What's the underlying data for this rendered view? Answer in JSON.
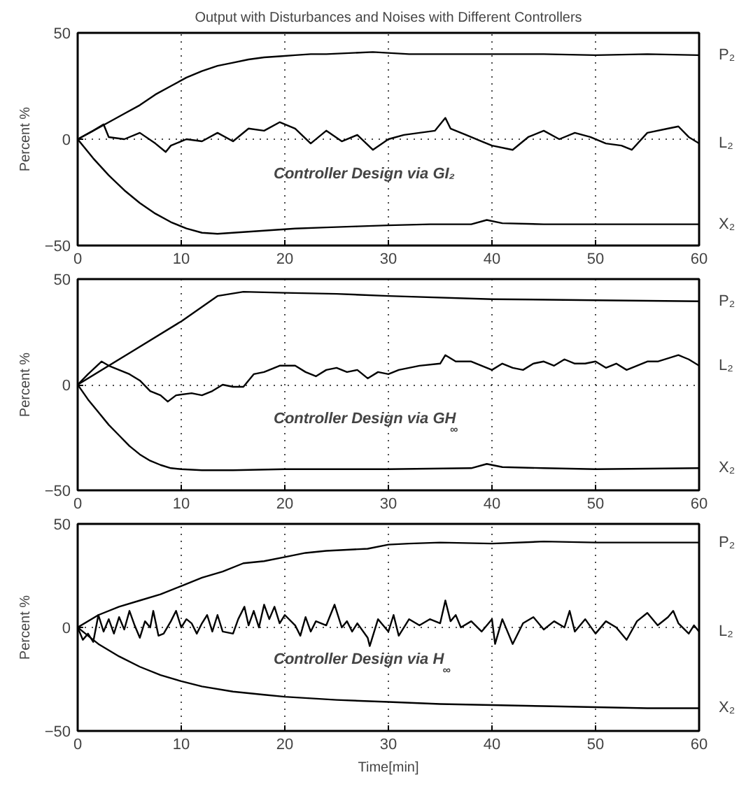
{
  "chart_data": [
    {
      "type": "line",
      "title": "Output with Disturbances and Noises with Different Controllers",
      "ylabel": "Percent %",
      "annotations": [
        "Controller Design via GI₂"
      ],
      "xlim": [
        0,
        60
      ],
      "ylim": [
        -50,
        50
      ],
      "xticks": [
        0,
        10,
        20,
        30,
        40,
        50,
        60
      ],
      "yticks": [
        -50,
        0,
        50
      ],
      "grid": true,
      "line_style": "solid",
      "series": [
        {
          "name": "P₂",
          "color": "#000000",
          "x": [
            0,
            1.5,
            3,
            4.5,
            6,
            7.5,
            9,
            10.5,
            12,
            13.5,
            15,
            16.5,
            18,
            19.5,
            21,
            22.5,
            24,
            28.5,
            32,
            36,
            40,
            45,
            50,
            55,
            60
          ],
          "values": [
            0,
            4,
            8,
            12,
            16,
            21,
            25,
            29,
            32,
            34.5,
            36,
            37.5,
            38.5,
            39,
            39.5,
            40,
            40,
            41,
            40,
            40,
            40,
            40,
            39.5,
            40,
            39.5
          ]
        },
        {
          "name": "L₂",
          "color": "#000000",
          "x": [
            0,
            1.5,
            2.5,
            3,
            4.5,
            6,
            7.5,
            8.5,
            9,
            10.5,
            12,
            13.5,
            15,
            16.5,
            18,
            19.5,
            21,
            22.5,
            24,
            25.5,
            27,
            28.5,
            30,
            31.5,
            33,
            34.5,
            35.5,
            36,
            37.5,
            39,
            40,
            42,
            43.5,
            45,
            46.5,
            48,
            49.5,
            51,
            52.5,
            53.5,
            55,
            57,
            58,
            59,
            60
          ],
          "values": [
            0,
            4,
            7,
            1,
            0,
            3,
            -2,
            -6,
            -3,
            0,
            -1,
            3,
            -1,
            5,
            4,
            8,
            5,
            -2,
            4,
            -1,
            2,
            -5,
            0,
            2,
            3,
            4,
            10,
            5,
            2,
            -1,
            -3,
            -5,
            1,
            4,
            0,
            3,
            1,
            -2,
            -3,
            -5,
            3,
            5,
            6,
            1,
            -2
          ]
        },
        {
          "name": "X₂",
          "color": "#000000",
          "x": [
            0,
            1.5,
            3,
            4.5,
            6,
            7.5,
            9,
            10.5,
            12,
            13.5,
            15,
            18,
            21,
            24,
            27,
            30,
            34,
            38,
            39.5,
            41,
            45,
            50,
            55,
            60
          ],
          "values": [
            0,
            -9,
            -17,
            -24,
            -30,
            -35,
            -39,
            -42,
            -44,
            -44.5,
            -44,
            -43,
            -42,
            -41.5,
            -41,
            -40.5,
            -40,
            -40,
            -38,
            -39.5,
            -40,
            -40,
            -40,
            -40
          ]
        }
      ]
    },
    {
      "type": "line",
      "ylabel": "Percent %",
      "annotations": [
        "Controller Design via GH$_{∞}$"
      ],
      "xlim": [
        0,
        60
      ],
      "ylim": [
        -50,
        50
      ],
      "xticks": [
        0,
        10,
        20,
        30,
        40,
        50,
        60
      ],
      "yticks": [
        -50,
        0,
        50
      ],
      "grid": true,
      "line_style": "solid",
      "series": [
        {
          "name": "P₂",
          "color": "#000000",
          "x": [
            0,
            5,
            10,
            13.5,
            16,
            20,
            25,
            30,
            40,
            50,
            60
          ],
          "values": [
            0,
            15,
            30,
            42,
            44,
            43.5,
            43,
            42,
            40.5,
            40,
            39.5
          ]
        },
        {
          "name": "L₂",
          "color": "#000000",
          "x": [
            0,
            1,
            2.3,
            3,
            4,
            5,
            6,
            7,
            8,
            8.7,
            9.5,
            11,
            12,
            13,
            14,
            15,
            16,
            17,
            18,
            19.5,
            21,
            22,
            23,
            24,
            25,
            26,
            27,
            28,
            29,
            30,
            31,
            33,
            35,
            35.5,
            36.5,
            38,
            39,
            40,
            41,
            42,
            43,
            44,
            45,
            46,
            47,
            48,
            49,
            50,
            51,
            52,
            53,
            55,
            56,
            58,
            59,
            60
          ],
          "values": [
            0,
            5,
            11,
            9,
            7,
            5,
            2,
            -3,
            -5,
            -8,
            -5,
            -4,
            -5,
            -3,
            0,
            -1,
            -1,
            5,
            6,
            9,
            9,
            6,
            4,
            7,
            8,
            6,
            7,
            3,
            6,
            5,
            7,
            9,
            10,
            14,
            11,
            11,
            9,
            7,
            10,
            8,
            7,
            10,
            11,
            9,
            12,
            10,
            10,
            11,
            8,
            10,
            7,
            11,
            11,
            14,
            12,
            9
          ]
        },
        {
          "name": "X₂",
          "color": "#000000",
          "x": [
            0,
            1,
            2,
            3,
            4,
            5,
            6,
            7,
            8,
            9,
            10,
            12,
            15,
            20,
            30,
            38,
            39.5,
            41,
            45,
            50,
            60
          ],
          "values": [
            0,
            -7,
            -13,
            -19,
            -24,
            -29,
            -33,
            -36,
            -38,
            -39.5,
            -40,
            -40.5,
            -40.5,
            -40,
            -40,
            -39.5,
            -37.5,
            -39,
            -39.5,
            -40,
            -39.5
          ]
        }
      ]
    },
    {
      "type": "line",
      "xlabel": "Time[min]",
      "ylabel": "Percent %",
      "annotations": [
        "Controller Design via H$_{∞}$"
      ],
      "xlim": [
        0,
        60
      ],
      "ylim": [
        -50,
        50
      ],
      "xticks": [
        0,
        10,
        20,
        30,
        40,
        50,
        60
      ],
      "yticks": [
        -50,
        0,
        50
      ],
      "grid": true,
      "line_style": "solid",
      "series": [
        {
          "name": "P₂",
          "color": "#000000",
          "x": [
            0,
            2,
            4,
            6,
            8,
            10,
            12,
            14,
            16,
            18,
            20,
            22,
            24,
            26,
            28,
            30,
            32,
            35,
            40,
            45,
            50,
            55,
            60
          ],
          "values": [
            0,
            6,
            10,
            13,
            16,
            20,
            24,
            27,
            31,
            32,
            34,
            36,
            37,
            37.5,
            38,
            40,
            40.5,
            41,
            40.5,
            41.5,
            41,
            41,
            41
          ]
        },
        {
          "name": "L₂",
          "color": "#000000",
          "x": [
            0,
            0.5,
            1,
            1.5,
            2,
            2.5,
            3,
            3.5,
            4,
            4.5,
            5,
            5.5,
            6,
            6.5,
            7,
            7.3,
            7.8,
            8.3,
            9,
            9.5,
            10,
            10.5,
            11,
            11.5,
            12,
            12.5,
            13,
            13.5,
            14,
            15,
            15.5,
            16.1,
            16.5,
            17,
            17.5,
            18,
            18.5,
            19,
            19.5,
            20,
            21,
            21.5,
            22,
            22.5,
            23,
            24,
            24.8,
            25.5,
            26,
            26.5,
            27,
            28,
            28.2,
            29,
            30,
            30.5,
            31,
            32,
            33,
            34,
            35,
            35.5,
            36,
            36.5,
            37,
            38,
            39,
            40,
            40.3,
            41,
            42,
            43,
            44,
            45,
            46,
            47,
            47.5,
            48,
            49,
            50,
            51,
            52,
            53,
            54,
            55,
            56,
            57,
            57.5,
            58,
            59,
            59.5,
            60
          ],
          "values": [
            0,
            -6,
            -3,
            -7,
            6,
            -2,
            4,
            -3,
            5,
            -1,
            8,
            1,
            -5,
            3,
            0,
            8,
            -4,
            -3,
            3,
            8,
            0,
            4,
            2,
            -3,
            2,
            6,
            -2,
            6,
            -2,
            -3,
            4,
            10,
            1,
            8,
            0,
            11,
            4,
            10,
            2,
            6,
            1,
            -4,
            5,
            -2,
            3,
            1,
            11,
            0,
            3,
            -2,
            2,
            -5,
            -9,
            4,
            -2,
            6,
            -4,
            4,
            1,
            4,
            2,
            13,
            3,
            6,
            0,
            3,
            -2,
            4,
            -8,
            4,
            -8,
            2,
            5,
            -1,
            3,
            0,
            8,
            -2,
            4,
            -3,
            3,
            0,
            -6,
            3,
            7,
            1,
            5,
            8,
            2,
            -3,
            1,
            -2
          ]
        },
        {
          "name": "X₂",
          "color": "#000000",
          "x": [
            0,
            1,
            2,
            4,
            6,
            8,
            10,
            12,
            15,
            18,
            20,
            25,
            30,
            35,
            40,
            45,
            50,
            55,
            60
          ],
          "values": [
            0,
            -4,
            -8,
            -14,
            -19,
            -23,
            -26,
            -28.5,
            -31,
            -32.5,
            -33.5,
            -35,
            -36,
            -37,
            -37.5,
            -38,
            -38.5,
            -39,
            -39
          ]
        }
      ]
    }
  ]
}
